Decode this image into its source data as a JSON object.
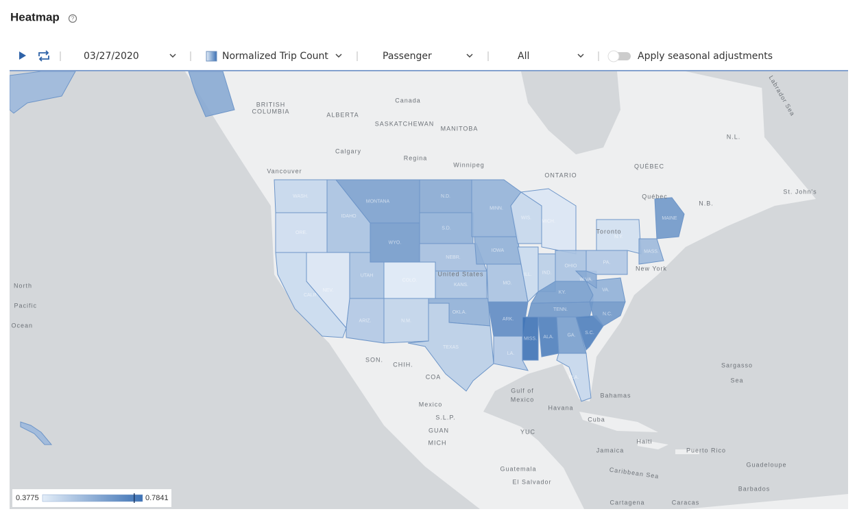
{
  "header": {
    "title": "Heatmap"
  },
  "toolbar": {
    "date": "03/27/2020",
    "metric": "Normalized Trip Count",
    "mode": "Passenger",
    "filter": "All",
    "toggle": "Apply seasonal adjustments"
  },
  "legend": {
    "min": 0.3775,
    "max": 0.7841,
    "marker": 0.75,
    "min_label": "0.3775",
    "max_label": "0.7841"
  },
  "map": {
    "regions": [
      {
        "label": "WASH.",
        "value": 0.45
      },
      {
        "label": "ORE.",
        "value": 0.43
      },
      {
        "label": "CALIF.",
        "value": 0.44
      },
      {
        "label": "NEV.",
        "value": 0.4
      },
      {
        "label": "IDAHO",
        "value": 0.52
      },
      {
        "label": "MONTANA",
        "value": 0.63
      },
      {
        "label": "WYO.",
        "value": 0.65
      },
      {
        "label": "UTAH",
        "value": 0.52
      },
      {
        "label": "COLO.",
        "value": 0.39
      },
      {
        "label": "ARIZ.",
        "value": 0.5
      },
      {
        "label": "N.M.",
        "value": 0.46
      },
      {
        "label": "N.D.",
        "value": 0.6
      },
      {
        "label": "S.D.",
        "value": 0.58
      },
      {
        "label": "NEBR.",
        "value": 0.53
      },
      {
        "label": "KANS.",
        "value": 0.52
      },
      {
        "label": "OKLA.",
        "value": 0.58
      },
      {
        "label": "TEXAS",
        "value": 0.48
      },
      {
        "label": "MINN.",
        "value": 0.57
      },
      {
        "label": "IOWA",
        "value": 0.58
      },
      {
        "label": "MO.",
        "value": 0.52
      },
      {
        "label": "ARK.",
        "value": 0.7
      },
      {
        "label": "LA.",
        "value": 0.5
      },
      {
        "label": "WIS.",
        "value": 0.45
      },
      {
        "label": "ILL.",
        "value": 0.44
      },
      {
        "label": "MISS.",
        "value": 0.78
      },
      {
        "label": "ALA.",
        "value": 0.74
      },
      {
        "label": "MICH.",
        "value": 0.4
      },
      {
        "label": "IND.",
        "value": 0.48
      },
      {
        "label": "OHIO",
        "value": 0.52
      },
      {
        "label": "KY.",
        "value": 0.64
      },
      {
        "label": "TENN.",
        "value": 0.66
      },
      {
        "label": "GA.",
        "value": 0.64
      },
      {
        "label": "FLA.",
        "value": 0.45
      },
      {
        "label": "S.C.",
        "value": 0.74
      },
      {
        "label": "N.C.",
        "value": 0.66
      },
      {
        "label": "VA.",
        "value": 0.58
      },
      {
        "label": "W.VA.",
        "value": 0.6
      },
      {
        "label": "PA.",
        "value": 0.5
      },
      {
        "label": "N.Y.",
        "value": 0.42
      },
      {
        "label": "MAINE",
        "value": 0.66
      },
      {
        "label": "MASS.",
        "value": 0.55
      },
      {
        "value": 0.55
      },
      {
        "value": 0.6
      },
      {
        "value": 0.55
      }
    ],
    "labels": [
      "Canada",
      "BRITISH",
      "COLUMBIA",
      "ALBERTA",
      "SASKATCHEWAN",
      "MANITOBA",
      "Calgary",
      "Regina",
      "Winnipeg",
      "Vancouver",
      "ONTARIO",
      "QUÉBEC",
      "Québec",
      "N.B.",
      "N.L.",
      "St. John's",
      "Toronto",
      "New York",
      "United States",
      "Mexico",
      "SON.",
      "CHIH.",
      "COA",
      "S.L.P.",
      "GUAN",
      "MICH",
      "YUC",
      "Gulf of",
      "Mexico",
      "Havana",
      "Bahamas",
      "Cuba",
      "Haiti",
      "Jamaica",
      "Puerto Rico",
      "Guadeloupe",
      "Barbados",
      "Guatemala",
      "El Salvador",
      "Cartagena",
      "Caracas",
      "Caribbean Sea",
      "Sargasso",
      "Sea",
      "North",
      "Pacific",
      "Ocean",
      "Labrador Sea"
    ]
  }
}
